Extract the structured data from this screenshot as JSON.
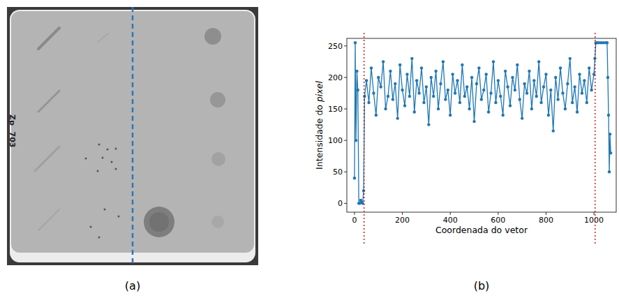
{
  "chart_data": {
    "type": "line",
    "x_label": "Coordenada do vetor",
    "y_label": "Intensidade do pixel",
    "x": [
      0,
      3,
      6,
      10,
      14,
      18,
      22,
      26,
      30,
      34,
      38,
      42,
      50,
      60,
      70,
      80,
      90,
      100,
      110,
      120,
      130,
      140,
      150,
      160,
      170,
      180,
      190,
      200,
      210,
      220,
      230,
      240,
      250,
      260,
      270,
      280,
      290,
      300,
      310,
      320,
      330,
      340,
      350,
      360,
      370,
      380,
      390,
      400,
      410,
      420,
      430,
      440,
      450,
      460,
      470,
      480,
      490,
      500,
      510,
      520,
      530,
      540,
      550,
      560,
      570,
      580,
      590,
      600,
      610,
      620,
      630,
      640,
      650,
      660,
      670,
      680,
      690,
      700,
      710,
      720,
      730,
      740,
      750,
      760,
      770,
      780,
      790,
      800,
      810,
      820,
      830,
      840,
      850,
      860,
      870,
      880,
      890,
      900,
      910,
      920,
      930,
      940,
      950,
      960,
      970,
      980,
      990,
      1000,
      1004,
      1008,
      1012,
      1020,
      1030,
      1040,
      1050,
      1055,
      1058,
      1061,
      1064,
      1067,
      1070
    ],
    "values": [
      40,
      255,
      100,
      210,
      180,
      0,
      0,
      5,
      2,
      0,
      20,
      170,
      195,
      160,
      215,
      175,
      140,
      200,
      185,
      225,
      150,
      170,
      210,
      165,
      190,
      135,
      220,
      180,
      155,
      205,
      170,
      230,
      145,
      195,
      175,
      215,
      160,
      185,
      125,
      200,
      170,
      210,
      150,
      190,
      225,
      165,
      180,
      140,
      205,
      175,
      195,
      160,
      220,
      170,
      185,
      150,
      200,
      130,
      190,
      215,
      165,
      180,
      205,
      145,
      175,
      225,
      160,
      195,
      170,
      140,
      210,
      185,
      155,
      200,
      180,
      220,
      165,
      135,
      190,
      175,
      210,
      150,
      195,
      170,
      225,
      160,
      185,
      205,
      140,
      180,
      115,
      200,
      165,
      215,
      175,
      150,
      190,
      230,
      160,
      185,
      145,
      205,
      175,
      195,
      160,
      215,
      180,
      205,
      230,
      255,
      255,
      255,
      255,
      255,
      255,
      255,
      200,
      140,
      50,
      110,
      80
    ],
    "color": "#1f77b4",
    "marker": "circle",
    "line_style": "solid",
    "xlim": [
      -32,
      1093
    ],
    "ylim": [
      -14,
      262
    ],
    "xticks": [
      0,
      200,
      400,
      600,
      800,
      1000
    ],
    "yticks": [
      0,
      50,
      100,
      150,
      200,
      250
    ],
    "grid": false,
    "vlines": [
      40,
      1005
    ],
    "vline_color": "#c00000"
  },
  "image": {
    "labels": [
      "Zp",
      "703"
    ]
  },
  "panel_labels": [
    "(a)",
    "(b)"
  ]
}
